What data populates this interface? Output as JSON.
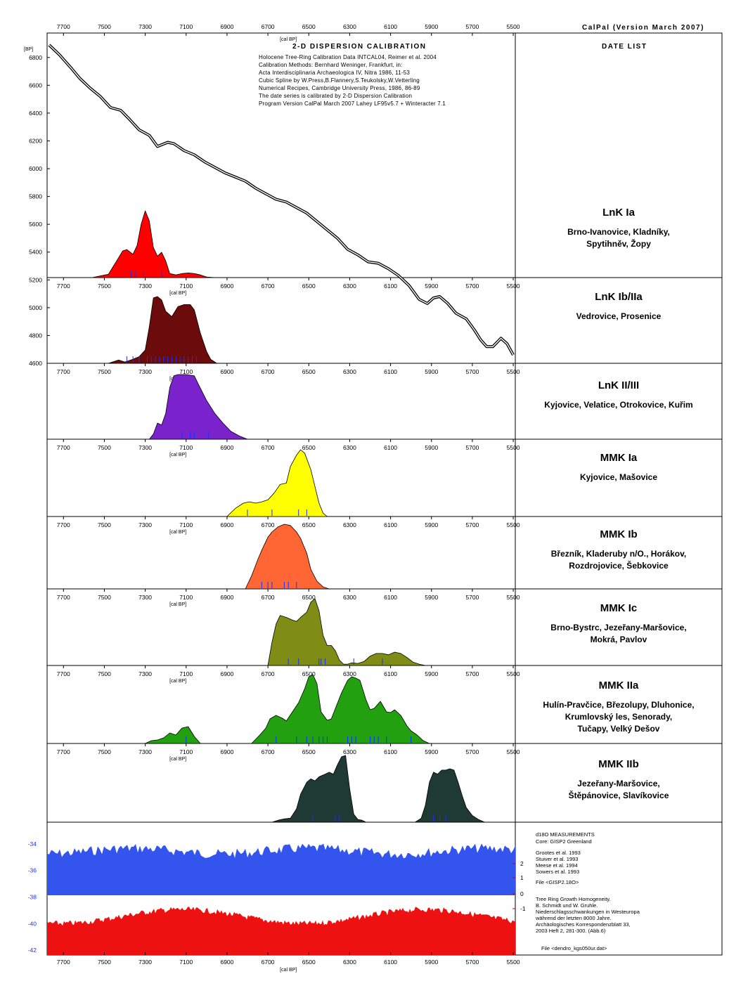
{
  "header": {
    "version": "CalPal (Version March 2007)",
    "title": "2-D DISPERSION CALIBRATION",
    "date_list": "DATE LIST",
    "notes": [
      "Holocene Tree-Ring Calibration Data INTCAL04, Reimer et al. 2004",
      "Calibration Methods:  Bernhard Weninger, Frankfurt, in:",
      "Acta Interdisciplinaria Archaeologica IV, Nitra 1986, 11-53",
      "Cubic Spline by W.Press,B.Flannery,S.Teukolsky,W.Vetterling",
      "Numerical Recipes, Cambridge University Press, 1986, 86-89",
      "The date series is calibrated by 2-D Dispersion Calibration",
      "Program Version CalPal March 2007 Lahey LF95v5.7 + Winteracter 7.1"
    ]
  },
  "chart_data": {
    "type": "area",
    "x_unit": "[cal BP]",
    "y_unit": "[BP]",
    "x_range": [
      7780,
      5490
    ],
    "x_ticks": [
      7700,
      7500,
      7300,
      7100,
      6900,
      6700,
      6500,
      6300,
      6100,
      5900,
      5700,
      5500
    ],
    "y_range": [
      4600,
      6900
    ],
    "y_ticks": [
      4600,
      4800,
      5000,
      5200,
      5400,
      5600,
      5800,
      6000,
      6200,
      6400,
      6600,
      6800
    ],
    "calibration_curve": {
      "x": [
        7770,
        7720,
        7660,
        7620,
        7570,
        7520,
        7470,
        7420,
        7380,
        7330,
        7280,
        7240,
        7190,
        7160,
        7110,
        7060,
        7010,
        6960,
        6910,
        6860,
        6810,
        6760,
        6710,
        6660,
        6610,
        6560,
        6510,
        6460,
        6410,
        6360,
        6310,
        6260,
        6210,
        6160,
        6110,
        6060,
        6010,
        5960,
        5920,
        5890,
        5860,
        5820,
        5780,
        5730,
        5690,
        5660,
        5630,
        5600,
        5560,
        5530,
        5500
      ],
      "y": [
        6890,
        6820,
        6720,
        6650,
        6580,
        6520,
        6440,
        6420,
        6360,
        6280,
        6240,
        6160,
        6190,
        6180,
        6130,
        6100,
        6050,
        6010,
        5970,
        5940,
        5910,
        5860,
        5820,
        5780,
        5760,
        5720,
        5680,
        5620,
        5560,
        5500,
        5420,
        5380,
        5330,
        5320,
        5280,
        5230,
        5160,
        5060,
        5030,
        5070,
        5080,
        5030,
        4960,
        4920,
        4840,
        4770,
        4720,
        4720,
        4780,
        4740,
        4660
      ]
    },
    "groups": [
      {
        "name": "LnK Ia",
        "sites": [
          "Brno-Ivanovice, Kladníky,",
          "Spytihněv, Žopy"
        ],
        "color": "#ff0000",
        "x": [
          7560,
          7480,
          7440,
          7410,
          7390,
          7360,
          7340,
          7320,
          7300,
          7280,
          7260,
          7240,
          7220,
          7200,
          7180,
          7150,
          7120,
          7090,
          7060,
          7030,
          7000,
          6960
        ],
        "y": [
          0,
          0.05,
          0.25,
          0.4,
          0.42,
          0.35,
          0.48,
          0.8,
          1.0,
          0.85,
          0.45,
          0.32,
          0.38,
          0.25,
          0.06,
          0.04,
          0.06,
          0.07,
          0.06,
          0.04,
          0.01,
          0
        ],
        "marks": [
          7370,
          7350,
          7310,
          7290,
          7220
        ]
      },
      {
        "name": "LnK Ib/IIa",
        "sites": [
          "Vedrovice, Prosenice"
        ],
        "color": "#6b0b0b",
        "x": [
          7480,
          7430,
          7400,
          7360,
          7330,
          7300,
          7280,
          7260,
          7240,
          7220,
          7200,
          7170,
          7140,
          7110,
          7080,
          7060,
          7030,
          7000,
          6980,
          6950
        ],
        "y": [
          0,
          0.05,
          0.02,
          0.06,
          0.1,
          0.2,
          0.55,
          0.98,
          1.0,
          0.95,
          0.78,
          0.7,
          0.85,
          0.88,
          0.88,
          0.8,
          0.45,
          0.18,
          0.06,
          0
        ],
        "marks": [
          7390,
          7360,
          7330,
          7290,
          7270,
          7250,
          7230,
          7210,
          7190,
          7170,
          7150,
          7130,
          7110,
          7090,
          7070,
          7050
        ]
      },
      {
        "name": "LnK II/III",
        "sites": [
          "Kyjovice, Velatice, Otrokovice, Kuřim"
        ],
        "color": "#7a22cc",
        "x": [
          7280,
          7260,
          7240,
          7220,
          7200,
          7180,
          7160,
          7140,
          7100,
          7060,
          7040,
          7000,
          6960,
          6920,
          6880,
          6840,
          6800
        ],
        "y": [
          0,
          0.08,
          0.25,
          0.22,
          0.4,
          0.8,
          0.98,
          1.0,
          1.0,
          0.98,
          0.85,
          0.6,
          0.4,
          0.25,
          0.12,
          0.05,
          0
        ],
        "marks": [
          7120,
          7080,
          7060,
          6990
        ]
      },
      {
        "name": "MMK Ia",
        "sites": [
          "Kyjovice, Mašovice"
        ],
        "color": "#ffff00",
        "x": [
          6900,
          6860,
          6820,
          6790,
          6760,
          6730,
          6700,
          6670,
          6640,
          6610,
          6590,
          6560,
          6540,
          6520,
          6490,
          6470,
          6450,
          6430,
          6410
        ],
        "y": [
          0,
          0.12,
          0.2,
          0.22,
          0.2,
          0.22,
          0.25,
          0.35,
          0.48,
          0.5,
          0.75,
          0.92,
          1.0,
          0.95,
          0.7,
          0.45,
          0.2,
          0.05,
          0
        ],
        "marks": [
          6800,
          6680,
          6550,
          6510
        ]
      },
      {
        "name": "MMK Ib",
        "sites": [
          "Březník, Kladeruby n/O., Horákov,",
          "Rozdrojovice, Šebkovice"
        ],
        "color": "#ff6633",
        "x": [
          6810,
          6780,
          6750,
          6730,
          6700,
          6680,
          6650,
          6620,
          6590,
          6560,
          6540,
          6510,
          6490,
          6460,
          6430,
          6400
        ],
        "y": [
          0,
          0.2,
          0.45,
          0.6,
          0.8,
          0.88,
          0.96,
          1.0,
          0.98,
          0.88,
          0.78,
          0.55,
          0.3,
          0.12,
          0.03,
          0
        ],
        "marks": [
          6730,
          6700,
          6680,
          6620,
          6600,
          6560
        ]
      },
      {
        "name": "MMK Ic",
        "sites": [
          "Brno-Bystrc, Jezeřany-Maršovice,",
          "Mokrá, Pavlov"
        ],
        "color": "#7f8c16",
        "x": [
          6700,
          6680,
          6660,
          6640,
          6610,
          6580,
          6560,
          6540,
          6510,
          6490,
          6470,
          6450,
          6430,
          6410,
          6390,
          6370,
          6350,
          6330,
          6310,
          6290,
          6260,
          6230,
          6200,
          6170,
          6140,
          6110,
          6080,
          6050,
          6020,
          5990,
          5960,
          5930
        ],
        "y": [
          0,
          0.35,
          0.62,
          0.75,
          0.72,
          0.68,
          0.66,
          0.72,
          0.8,
          0.95,
          1.0,
          0.82,
          0.45,
          0.3,
          0.3,
          0.22,
          0.08,
          0.02,
          0.02,
          0.04,
          0.03,
          0.06,
          0.14,
          0.18,
          0.18,
          0.16,
          0.2,
          0.18,
          0.12,
          0.05,
          0.02,
          0
        ],
        "marks": [
          6600,
          6550,
          6450,
          6440,
          6420,
          6280,
          6140
        ]
      },
      {
        "name": "MMK IIa",
        "sites": [
          "Hulín-Pravčice, Březolupy, Dluhonice,",
          "Krumlovský les, Senorady,",
          "Tučapy, Velký Dešov"
        ],
        "color": "#22a010",
        "x": [
          7300,
          7270,
          7240,
          7210,
          7180,
          7150,
          7120,
          7090,
          7060,
          7030,
          6780,
          6740,
          6710,
          6690,
          6660,
          6630,
          6610,
          6580,
          6550,
          6520,
          6500,
          6480,
          6460,
          6440,
          6410,
          6390,
          6370,
          6340,
          6310,
          6290,
          6270,
          6250,
          6220,
          6200,
          6180,
          6150,
          6120,
          6100,
          6080,
          6050,
          6020,
          6000,
          5970,
          5940,
          5910
        ],
        "y": [
          0,
          0.04,
          0.05,
          0.08,
          0.15,
          0.12,
          0.22,
          0.24,
          0.1,
          0,
          0,
          0.12,
          0.22,
          0.35,
          0.4,
          0.36,
          0.32,
          0.45,
          0.58,
          0.78,
          0.95,
          0.98,
          0.85,
          0.45,
          0.33,
          0.35,
          0.5,
          0.72,
          0.9,
          0.95,
          0.93,
          0.9,
          0.62,
          0.48,
          0.5,
          0.6,
          0.45,
          0.44,
          0.48,
          0.4,
          0.25,
          0.18,
          0.12,
          0.04,
          0
        ],
        "marks": [
          7100,
          6660,
          6560,
          6510,
          6480,
          6450,
          6430,
          6410,
          6310,
          6290,
          6270,
          6200,
          6180,
          6160,
          6120,
          6000
        ]
      },
      {
        "name": "MMK IIb",
        "sites": [
          "Jezeřany-Maršovice,",
          "Štěpánovice, Slavíkovice"
        ],
        "color": "#1e3a32",
        "x": [
          6680,
          6650,
          6620,
          6590,
          6560,
          6540,
          6510,
          6490,
          6470,
          6450,
          6420,
          6400,
          6380,
          6360,
          6340,
          6320,
          6300,
          6280,
          6260,
          6240,
          6220,
          5980,
          5950,
          5930,
          5910,
          5890,
          5870,
          5850,
          5830,
          5810,
          5790,
          5770,
          5750,
          5730,
          5700,
          5670,
          5640
        ],
        "y": [
          0,
          0.03,
          0.05,
          0.06,
          0.2,
          0.42,
          0.6,
          0.65,
          0.62,
          0.68,
          0.72,
          0.75,
          0.72,
          0.86,
          0.98,
          1.0,
          0.5,
          0.12,
          0.04,
          0.03,
          0,
          0,
          0.06,
          0.25,
          0.6,
          0.75,
          0.72,
          0.78,
          0.78,
          0.8,
          0.78,
          0.6,
          0.4,
          0.22,
          0.1,
          0.04,
          0
        ],
        "marks": [
          6480,
          6370,
          6350,
          5890,
          5860,
          5830
        ]
      }
    ],
    "d18o": {
      "title": "d18O MEASUREMENTS",
      "core": "Core: GISP2 Greenland",
      "refs": [
        "Grootes et al. 1993",
        "Stuiver et al. 1993",
        "Meese et al. 1994",
        "Sowers et al. 1993"
      ],
      "file": "File <GISP2.18O>",
      "y_ticks": [
        -34,
        -36,
        -38,
        -40,
        -42
      ],
      "y_range": [
        -43,
        -33
      ],
      "color": "#3355ee",
      "values_approx_mean": -34.9
    },
    "dendro": {
      "notes": [
        "Tree Ring Growth Homogeneity.",
        "B. Schmidt und W. Gruhle.",
        "Niederschlagsschwankungen in Westeuropa",
        "während der letzten 8000 Jahre.",
        "Archäologisches Korrespondenzblatt 33,",
        "2003 Heft 2, 281-300. (Abb.6)"
      ],
      "file": "File <dendro_kgs050ur.dat>",
      "right_ticks": [
        "2",
        "1",
        "0",
        "-1"
      ],
      "color": "#ee1111",
      "values_approx_mean": -40.3
    }
  }
}
